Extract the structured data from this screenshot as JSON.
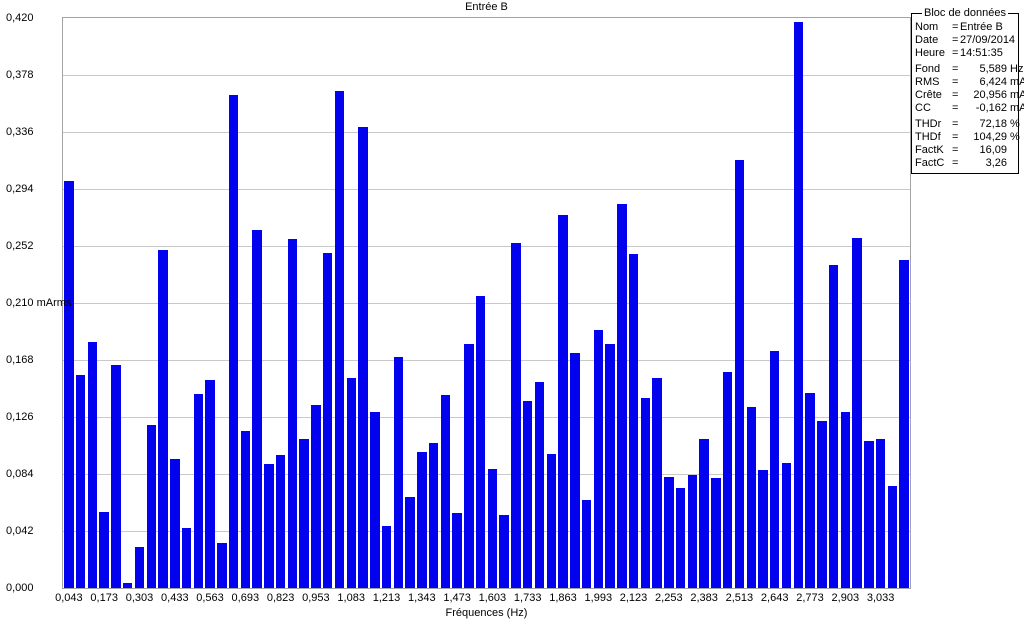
{
  "title": "Entrée B",
  "colors": {
    "bar": "#0202ee",
    "grid": "#c9c9c9",
    "axis_border": "#a3a3a3",
    "text": "#000000",
    "background": "#ffffff"
  },
  "chart_data": {
    "type": "bar",
    "title": "Entrée B",
    "xlabel": "Fréquences (Hz)",
    "ylabel": "mArms",
    "ylim": [
      0,
      0.42
    ],
    "y_tick_step": 0.042,
    "y_tick_labels": [
      "0,420",
      "0,378",
      "0,336",
      "0,294",
      "0,252",
      "0,210",
      "0,168",
      "0,126",
      "0,084",
      "0,042",
      "0,000"
    ],
    "y_unit_label": "mArms",
    "y_unit_attached_to_tick": "0,210",
    "grid": true,
    "n_bars": 72,
    "x_tick_labels": [
      "0,043",
      "0,173",
      "0,303",
      "0,433",
      "0,563",
      "0,693",
      "0,823",
      "0,953",
      "1,083",
      "1,213",
      "1,343",
      "1,473",
      "1,603",
      "1,733",
      "1,863",
      "1,993",
      "2,123",
      "2,253",
      "2,383",
      "2,513",
      "2,643",
      "2,773",
      "2,903",
      "3,033"
    ],
    "x_ticks_every": 3,
    "x_start": 0.043,
    "x_step": 0.0433,
    "values": [
      0.3,
      0.157,
      0.181,
      0.056,
      0.164,
      0.004,
      0.03,
      0.12,
      0.249,
      0.095,
      0.044,
      0.143,
      0.153,
      0.033,
      0.363,
      0.116,
      0.264,
      0.091,
      0.098,
      0.257,
      0.11,
      0.135,
      0.247,
      0.366,
      0.155,
      0.34,
      0.13,
      0.046,
      0.17,
      0.067,
      0.1,
      0.107,
      0.142,
      0.055,
      0.18,
      0.215,
      0.088,
      0.054,
      0.254,
      0.138,
      0.152,
      0.099,
      0.275,
      0.173,
      0.065,
      0.19,
      0.18,
      0.283,
      0.246,
      0.14,
      0.155,
      0.082,
      0.074,
      0.083,
      0.11,
      0.081,
      0.159,
      0.315,
      0.133,
      0.087,
      0.175,
      0.092,
      0.417,
      0.144,
      0.123,
      0.238,
      0.13,
      0.258,
      0.108,
      0.11,
      0.075,
      0.242
    ]
  },
  "data_block": {
    "title": "Bloc de données",
    "groups": [
      [
        {
          "label": "Nom",
          "value": "Entrée B",
          "unit": "",
          "numeric": false
        },
        {
          "label": "Date",
          "value": "27/09/2014",
          "unit": "",
          "numeric": false
        },
        {
          "label": "Heure",
          "value": "14:51:35",
          "unit": "",
          "numeric": false
        }
      ],
      [
        {
          "label": "Fond",
          "value": "5,589",
          "unit": "Hz",
          "numeric": true
        },
        {
          "label": "RMS",
          "value": "6,424",
          "unit": "mA",
          "numeric": true
        },
        {
          "label": "Crête",
          "value": "20,956",
          "unit": "mA",
          "numeric": true
        },
        {
          "label": "CC",
          "value": "-0,162",
          "unit": "mA",
          "numeric": true
        }
      ],
      [
        {
          "label": "THDr",
          "value": "72,18",
          "unit": "%",
          "numeric": true
        },
        {
          "label": "THDf",
          "value": "104,29",
          "unit": "%",
          "numeric": true
        },
        {
          "label": "FactK",
          "value": "16,09",
          "unit": "",
          "numeric": true
        },
        {
          "label": "FactC",
          "value": "3,26",
          "unit": "",
          "numeric": true
        }
      ]
    ]
  }
}
